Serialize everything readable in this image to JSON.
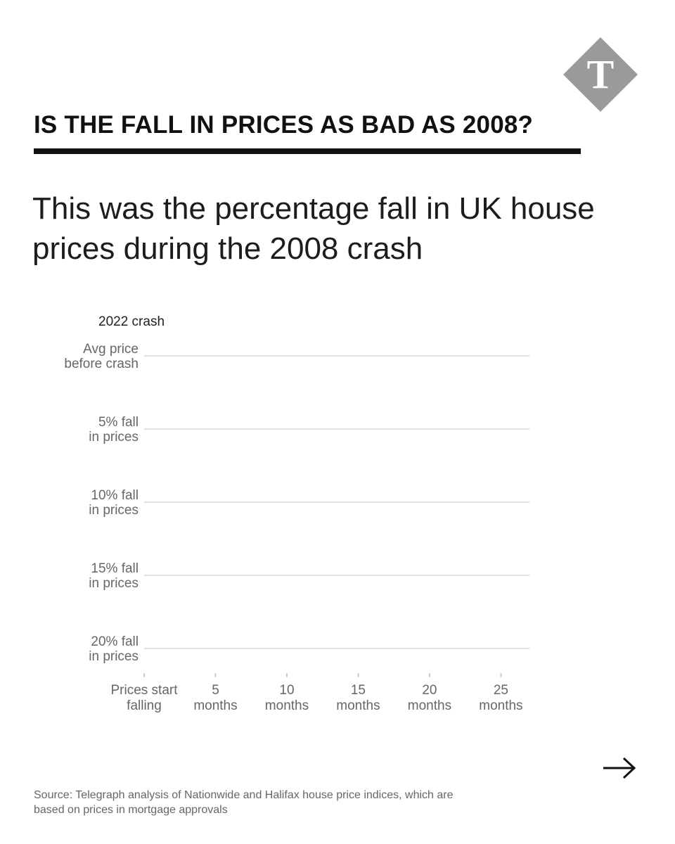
{
  "logo": {
    "icon": "telegraph-t-logo-icon",
    "fill": "#9a9a9a",
    "letter": "T"
  },
  "headline": "IS THE FALL IN PRICES AS BAD AS 2008?",
  "subtitle": "This was the percentage fall in UK house prices during the 2008 crash",
  "chart_data": {
    "type": "line",
    "series_label": "2022 crash",
    "series": [],
    "y_ticks": [
      {
        "value": 0,
        "lines": [
          "Avg price",
          "before crash"
        ]
      },
      {
        "value": -5,
        "lines": [
          "5% fall",
          "in prices"
        ]
      },
      {
        "value": -10,
        "lines": [
          "10% fall",
          "in prices"
        ]
      },
      {
        "value": -15,
        "lines": [
          "15% fall",
          "in prices"
        ]
      },
      {
        "value": -20,
        "lines": [
          "20% fall",
          "in prices"
        ]
      }
    ],
    "x_ticks": [
      {
        "value": 0,
        "lines": [
          "Prices start",
          "falling"
        ]
      },
      {
        "value": 5,
        "lines": [
          "5",
          "months"
        ]
      },
      {
        "value": 10,
        "lines": [
          "10",
          "months"
        ]
      },
      {
        "value": 15,
        "lines": [
          "15",
          "months"
        ]
      },
      {
        "value": 20,
        "lines": [
          "20",
          "months"
        ]
      },
      {
        "value": 25,
        "lines": [
          "25",
          "months"
        ]
      }
    ],
    "ylim": [
      -20,
      0
    ],
    "xlim": [
      0,
      27
    ],
    "grid": true,
    "colors": {
      "grid": "#e2e2e2",
      "label": "#666666",
      "series_label": "#222222"
    }
  },
  "nav": {
    "icon": "arrow-right-icon"
  },
  "source": "Source: Telegraph analysis of Nationwide and Halifax house price indices, which are based on prices in mortgage approvals"
}
